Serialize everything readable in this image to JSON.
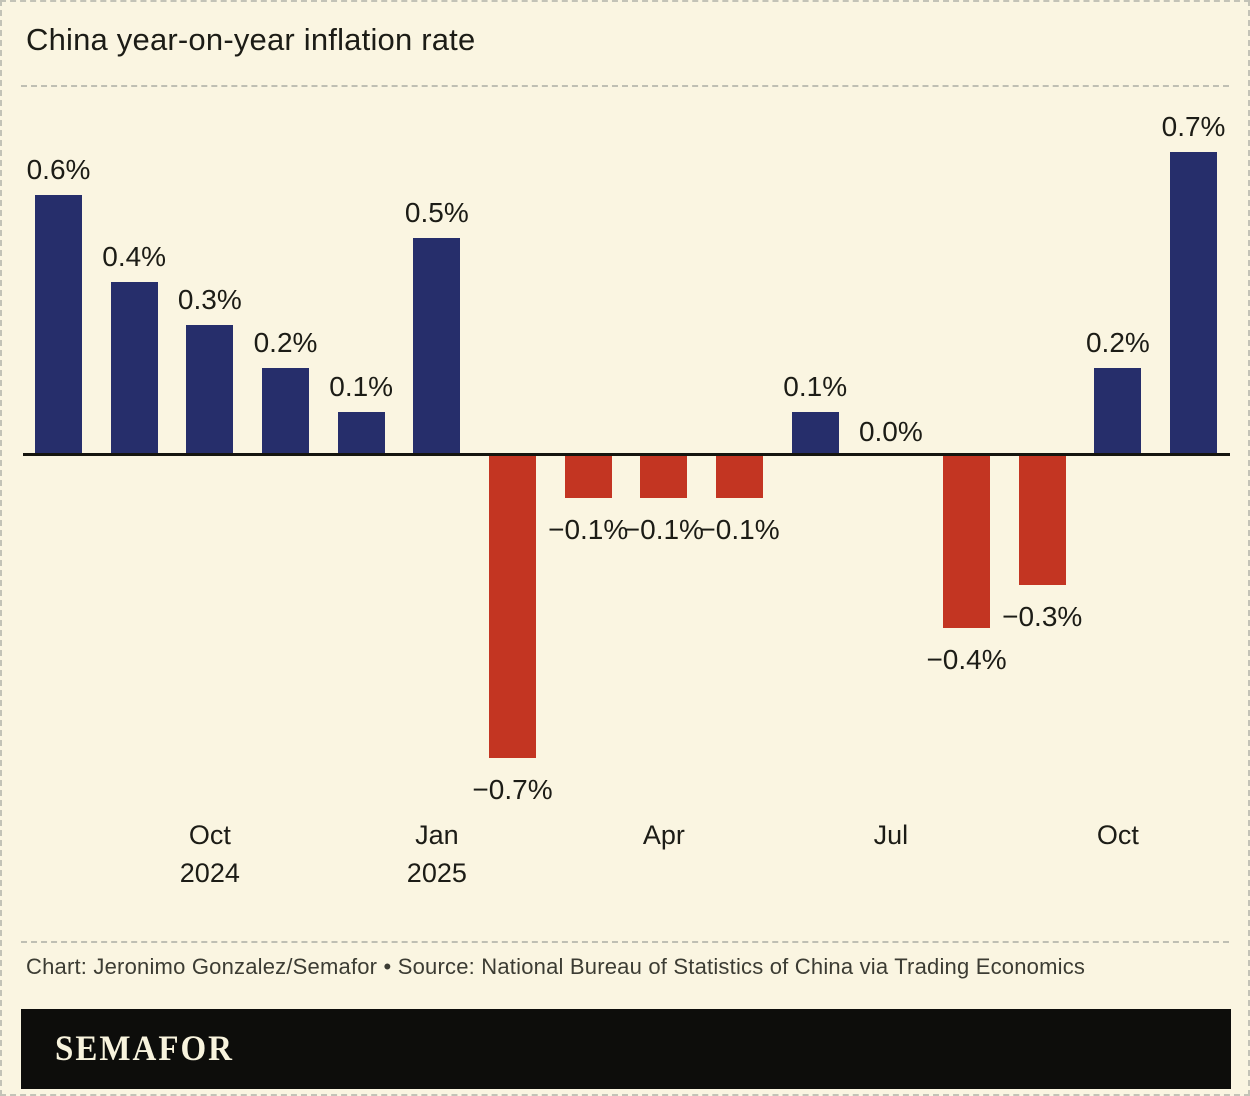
{
  "header": {
    "title": "China year-on-year inflation rate"
  },
  "chart_data": {
    "type": "bar",
    "title": "China year-on-year inflation rate",
    "unit": "percent, year-on-year",
    "values": [
      0.6,
      0.4,
      0.3,
      0.2,
      0.1,
      0.5,
      -0.7,
      -0.1,
      -0.1,
      -0.1,
      0.1,
      0.0,
      -0.4,
      -0.3,
      0.2,
      0.7
    ],
    "bar_labels": [
      "0.6%",
      "0.4%",
      "0.3%",
      "0.2%",
      "0.1%",
      "0.5%",
      "−0.7%",
      "−0.1%",
      "−0.1%",
      "−0.1%",
      "0.1%",
      "0.0%",
      "−0.4%",
      "−0.3%",
      "0.2%",
      "0.7%"
    ],
    "x_ticks": [
      {
        "index": 2,
        "lines": [
          "Oct",
          "2024"
        ]
      },
      {
        "index": 5,
        "lines": [
          "Jan",
          "2025"
        ]
      },
      {
        "index": 8,
        "lines": [
          "Apr"
        ]
      },
      {
        "index": 11,
        "lines": [
          "Jul"
        ]
      },
      {
        "index": 14,
        "lines": [
          "Oct"
        ]
      }
    ],
    "positive_color": "#262e6b",
    "negative_color": "#c33522",
    "axis_color": "#15150f",
    "background_color": "#faf5e1",
    "baseline": 0,
    "ylim": [
      -0.7,
      0.7
    ],
    "grid": false,
    "legend": false
  },
  "footer": {
    "credit": "Chart: Jeronimo Gonzalez/Semafor • Source: National Bureau of Statistics of China via Trading Economics",
    "logo": "SEMAFOR"
  }
}
